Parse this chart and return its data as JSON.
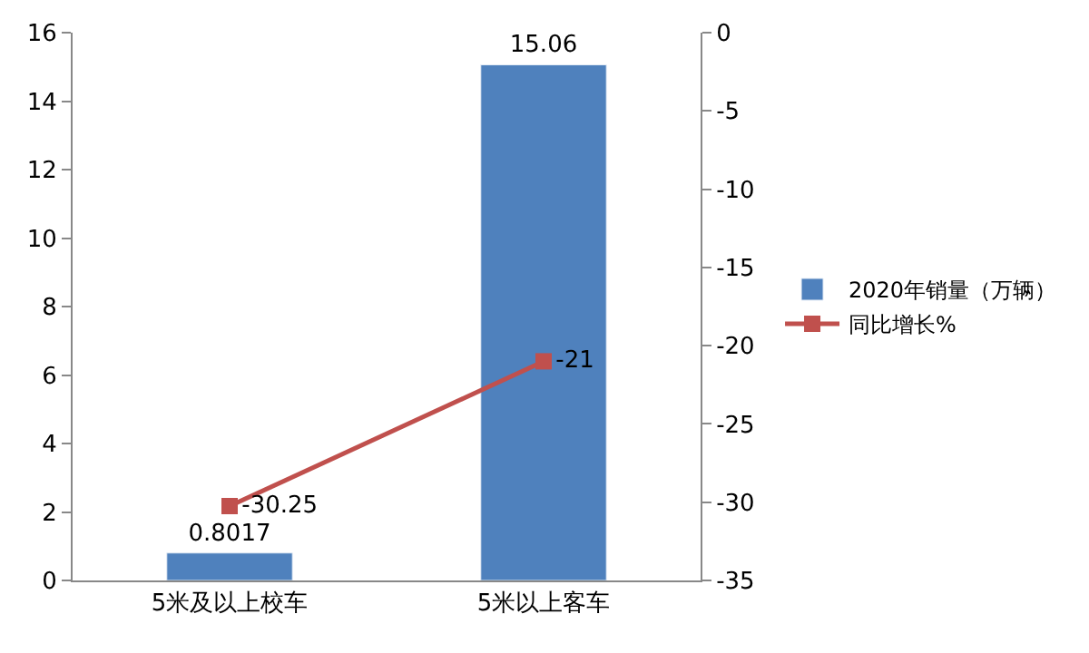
{
  "chart_data": {
    "type": "bar",
    "categories": [
      "5米及以上校车",
      "5米以上客车"
    ],
    "series": [
      {
        "name": "2020年销量（万辆）",
        "color": "#4f81bd",
        "values": [
          0.8017,
          15.06
        ]
      },
      {
        "name": "同比增长%",
        "type": "line",
        "axis": "y2",
        "color": "#c0504d",
        "marker": "square",
        "values": [
          -30.25,
          -21
        ]
      }
    ],
    "ylim": [
      0,
      16
    ],
    "yticks": [
      0,
      2,
      4,
      6,
      8,
      10,
      12,
      14,
      16
    ],
    "y2lim": [
      -35,
      0
    ],
    "y2ticks": [
      -35,
      -30,
      -25,
      -20,
      -15,
      -10,
      -5,
      0
    ],
    "data_labels": true,
    "legend": "right"
  }
}
